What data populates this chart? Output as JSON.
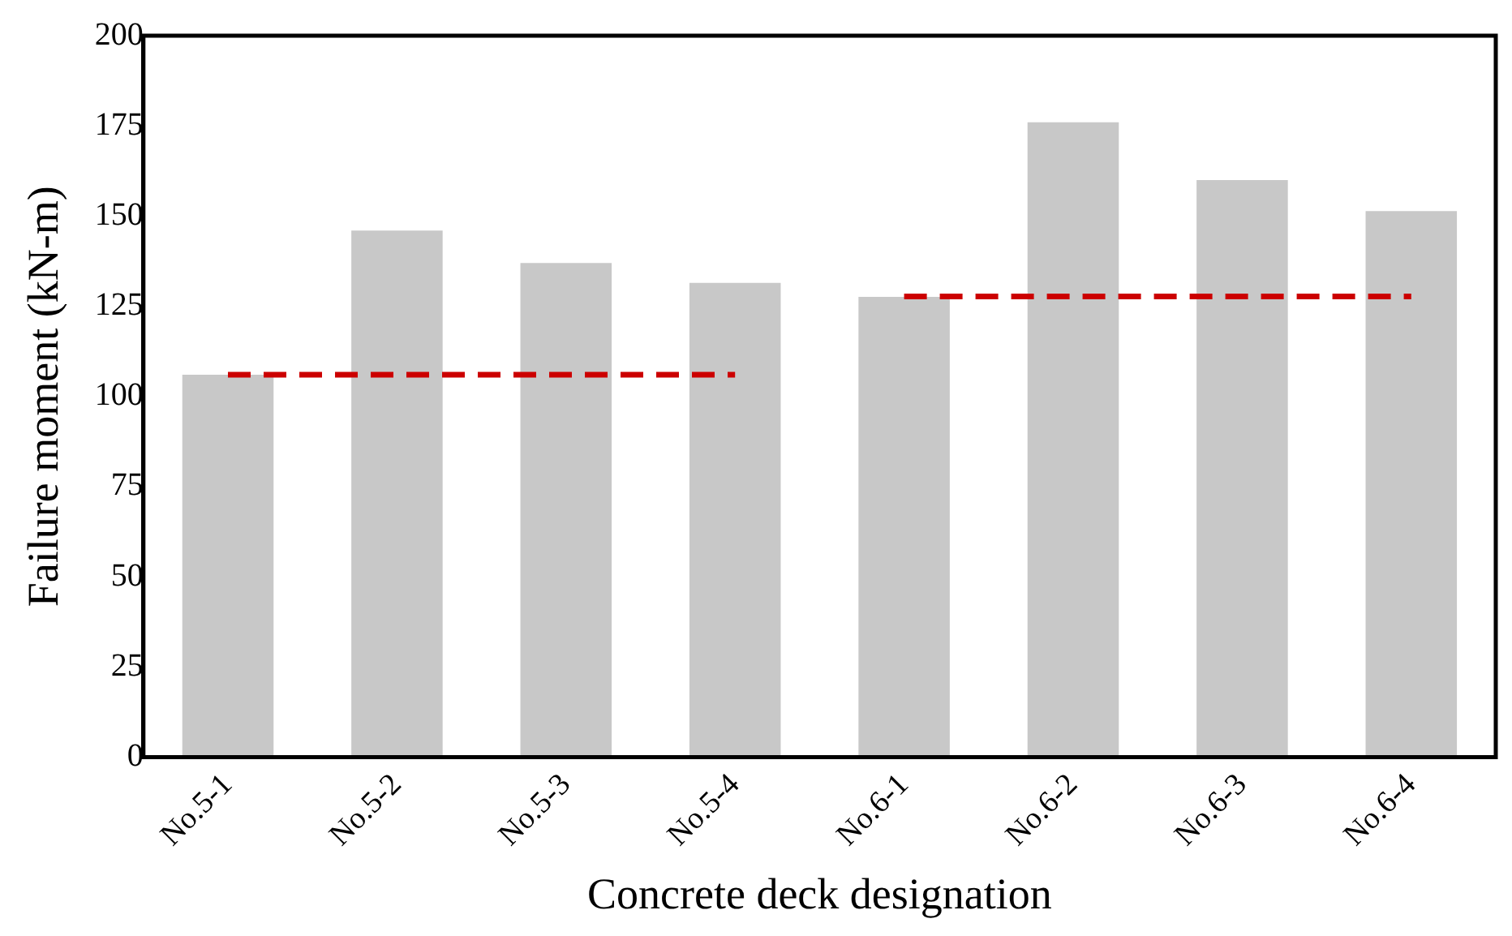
{
  "chart_data": {
    "type": "bar",
    "xlabel": "Concrete deck designation",
    "ylabel": "Failure moment (kN-m)",
    "categories": [
      "No.5-1",
      "No.5-2",
      "No.5-3",
      "No.5-4",
      "No.6-1",
      "No.6-2",
      "No.6-3",
      "No.6-4"
    ],
    "series": [
      {
        "color": "#c8c8c8",
        "values": [
          106,
          146,
          137,
          131.5,
          127.6,
          176,
          160,
          151.4
        ]
      },
      {
        "type": "line",
        "color": "#cc0000",
        "line_style": "dashed",
        "marker": "none",
        "values": [
          106,
          106,
          106,
          106,
          null,
          null,
          null,
          null
        ]
      },
      {
        "type": "line",
        "color": "#cc0000",
        "line_style": "dashed",
        "marker": "none",
        "values": [
          null,
          null,
          null,
          null,
          127.7,
          127.7,
          127.7,
          127.7
        ]
      }
    ],
    "ylim": [
      0,
      200
    ],
    "yticks": [
      0,
      25,
      50,
      75,
      100,
      125,
      150,
      175,
      200
    ],
    "grid": false,
    "legend": false
  }
}
